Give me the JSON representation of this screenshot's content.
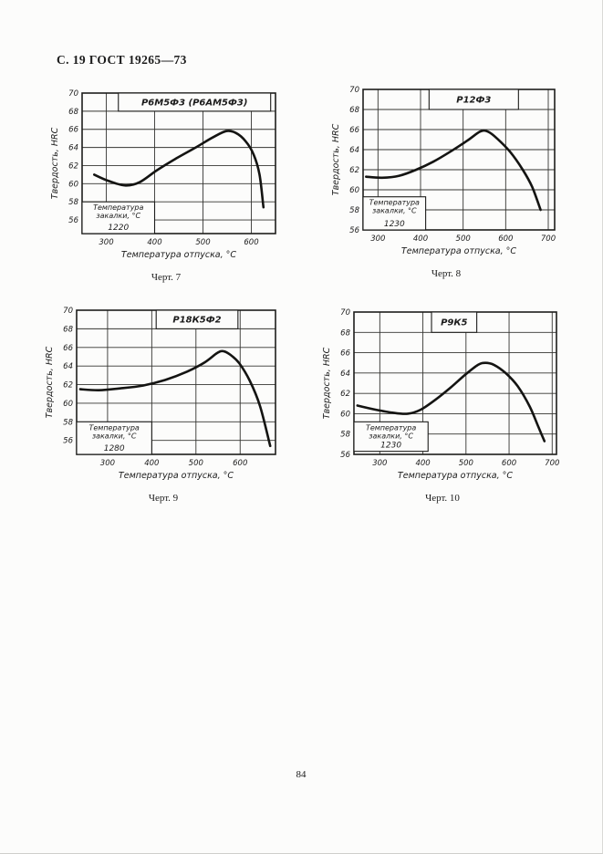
{
  "page": {
    "header": "С. 19 ГОСТ 19265—73",
    "page_number": "84"
  },
  "colors": {
    "ink": "#1b1b1b",
    "paper": "#fcfcfb"
  },
  "chart_data": [
    {
      "type": "line",
      "figure_caption": "Черт. 7",
      "title": "Р6М5Ф3 (Р6АМ5Ф3)",
      "ylabel": "Твердость, HRC",
      "xlabel": "Температура отпуска, °С",
      "quench_note": {
        "lines": [
          "Температура",
          "закалки, °С"
        ],
        "value": "1220"
      },
      "x_ticks": [
        300,
        400,
        500,
        600
      ],
      "y_ticks": [
        56,
        58,
        60,
        62,
        64,
        66,
        68,
        70
      ],
      "x_range": [
        250,
        650
      ],
      "y_range": [
        54.5,
        70
      ],
      "grid": true,
      "title_span": [
        325,
        640
      ],
      "note_box": {
        "x": [
          250,
          400
        ],
        "y_top": 58,
        "y_bottom": 54.5
      },
      "series": [
        {
          "name": "Р6М5Ф3 (Р6АМ5Ф3)",
          "points": [
            [
              275,
              61.0
            ],
            [
              305,
              60.3
            ],
            [
              340,
              59.8
            ],
            [
              370,
              60.2
            ],
            [
              405,
              61.5
            ],
            [
              445,
              62.8
            ],
            [
              485,
              64.0
            ],
            [
              520,
              65.1
            ],
            [
              548,
              65.8
            ],
            [
              568,
              65.6
            ],
            [
              588,
              64.7
            ],
            [
              605,
              63.2
            ],
            [
              617,
              61.0
            ],
            [
              625,
              57.4
            ]
          ]
        }
      ]
    },
    {
      "type": "line",
      "figure_caption": "Черт. 8",
      "title": "Р12Ф3",
      "ylabel": "Твердость, HRC",
      "xlabel": "Температура отпуска, °С",
      "quench_note": {
        "lines": [
          "Температура",
          "закалки, °С"
        ],
        "value": "1230"
      },
      "x_ticks": [
        300,
        400,
        500,
        600,
        700
      ],
      "y_ticks": [
        56,
        58,
        60,
        62,
        64,
        66,
        68,
        70
      ],
      "x_range": [
        265,
        715
      ],
      "y_range": [
        56,
        70
      ],
      "grid": true,
      "title_span": [
        420,
        630
      ],
      "note_box": {
        "x": [
          265,
          412
        ],
        "y_top": 59.3,
        "y_bottom": 56
      },
      "series": [
        {
          "name": "Р12Ф3",
          "points": [
            [
              272,
              61.3
            ],
            [
              310,
              61.2
            ],
            [
              350,
              61.4
            ],
            [
              390,
              62.0
            ],
            [
              430,
              62.8
            ],
            [
              470,
              63.8
            ],
            [
              510,
              64.9
            ],
            [
              540,
              65.8
            ],
            [
              558,
              65.8
            ],
            [
              580,
              65.1
            ],
            [
              610,
              63.8
            ],
            [
              640,
              62.0
            ],
            [
              662,
              60.3
            ],
            [
              682,
              58.0
            ]
          ]
        }
      ]
    },
    {
      "type": "line",
      "figure_caption": "Черт. 9",
      "title": "Р18К5Ф2",
      "ylabel": "Твердость, HRC",
      "xlabel": "Температура отпуска, °С",
      "quench_note": {
        "lines": [
          "Температура",
          "закалки, °С"
        ],
        "value": "1280"
      },
      "x_ticks": [
        300,
        400,
        500,
        600
      ],
      "y_ticks": [
        56,
        58,
        60,
        62,
        64,
        66,
        68,
        70
      ],
      "x_range": [
        230,
        680
      ],
      "y_range": [
        54.5,
        70
      ],
      "grid": true,
      "title_span": [
        410,
        595
      ],
      "note_box": {
        "x": [
          230,
          400
        ],
        "y_top": 58,
        "y_bottom": 54.5
      },
      "series": [
        {
          "name": "Р18К5Ф2",
          "points": [
            [
              238,
              61.5
            ],
            [
              280,
              61.4
            ],
            [
              330,
              61.6
            ],
            [
              380,
              61.9
            ],
            [
              430,
              62.5
            ],
            [
              480,
              63.4
            ],
            [
              520,
              64.4
            ],
            [
              548,
              65.4
            ],
            [
              562,
              65.6
            ],
            [
              578,
              65.2
            ],
            [
              598,
              64.3
            ],
            [
              622,
              62.4
            ],
            [
              645,
              59.7
            ],
            [
              668,
              55.4
            ]
          ]
        }
      ]
    },
    {
      "type": "line",
      "figure_caption": "Черт. 10",
      "title": "Р9К5",
      "ylabel": "Твердость, HRC",
      "xlabel": "Температура отпуска, °С",
      "quench_note": {
        "lines": [
          "Температура",
          "закалки, °С"
        ],
        "value": "1230"
      },
      "x_ticks": [
        300,
        400,
        500,
        600,
        700
      ],
      "y_ticks": [
        56,
        58,
        60,
        62,
        64,
        66,
        68,
        70
      ],
      "x_range": [
        240,
        710
      ],
      "y_range": [
        56,
        70
      ],
      "grid": true,
      "title_span": [
        420,
        525
      ],
      "note_box": {
        "x": [
          240,
          412
        ],
        "y_top": 59.2,
        "y_bottom": 56.3
      },
      "series": [
        {
          "name": "Р9К5",
          "points": [
            [
              248,
              60.8
            ],
            [
              290,
              60.4
            ],
            [
              330,
              60.1
            ],
            [
              365,
              60.0
            ],
            [
              395,
              60.4
            ],
            [
              430,
              61.4
            ],
            [
              465,
              62.6
            ],
            [
              500,
              63.9
            ],
            [
              528,
              64.8
            ],
            [
              545,
              65.0
            ],
            [
              565,
              64.8
            ],
            [
              592,
              64.0
            ],
            [
              620,
              62.7
            ],
            [
              648,
              60.7
            ],
            [
              668,
              58.7
            ],
            [
              682,
              57.3
            ]
          ]
        }
      ]
    }
  ]
}
